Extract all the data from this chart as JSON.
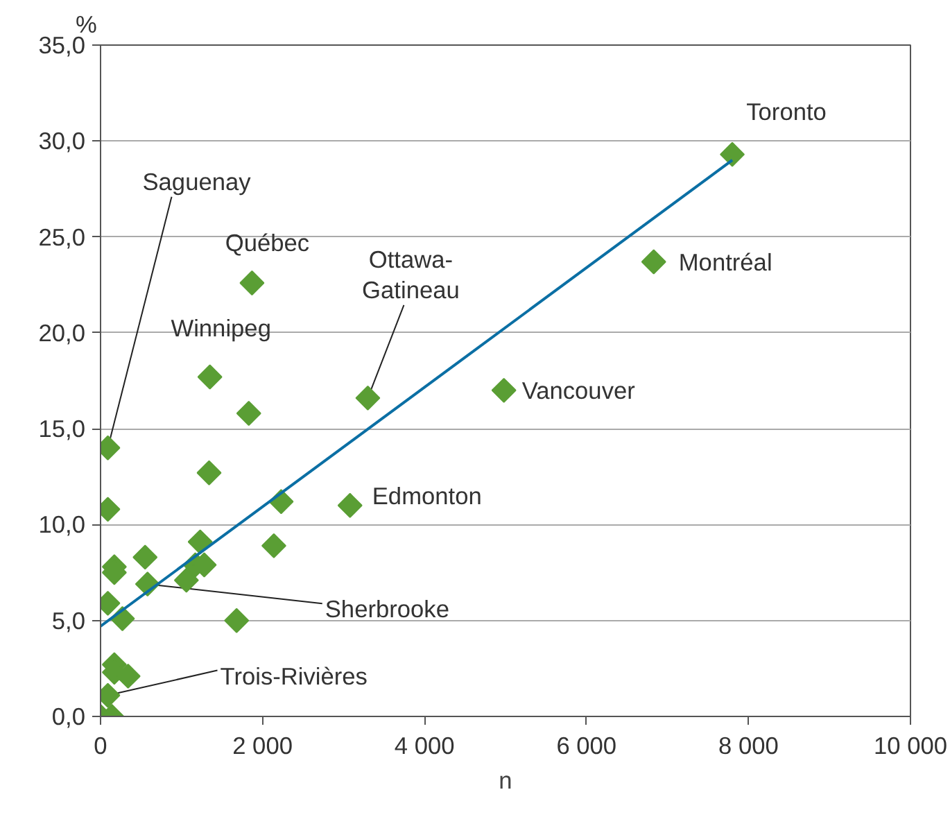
{
  "chart_data": {
    "type": "scatter",
    "ylabel": "%",
    "xlabel": "n",
    "xlim": [
      0,
      10000
    ],
    "ylim": [
      0,
      35
    ],
    "xticks": [
      {
        "value": 0,
        "label": "0"
      },
      {
        "value": 2000,
        "label": "2 000"
      },
      {
        "value": 4000,
        "label": "4 000"
      },
      {
        "value": 6000,
        "label": "6 000"
      },
      {
        "value": 8000,
        "label": "8 000"
      },
      {
        "value": 10000,
        "label": "10 000"
      }
    ],
    "yticks": [
      {
        "value": 0,
        "label": "0,0"
      },
      {
        "value": 5,
        "label": "5,0"
      },
      {
        "value": 10,
        "label": "10,0"
      },
      {
        "value": 15,
        "label": "15,0"
      },
      {
        "value": 20,
        "label": "20,0"
      },
      {
        "value": 25,
        "label": "25,0"
      },
      {
        "value": 30,
        "label": "30,0"
      },
      {
        "value": 35,
        "label": "35,0"
      }
    ],
    "grid": "y",
    "series": [
      {
        "marker": "diamond",
        "color": "#5a9e34",
        "x": [
          7800,
          6830,
          1870,
          1350,
          1830,
          3300,
          4980,
          1340,
          2230,
          3080,
          2140,
          90,
          90,
          1230,
          550,
          170,
          170,
          1170,
          1280,
          1060,
          580,
          90,
          270,
          1680,
          170,
          170,
          340,
          90,
          0,
          140
        ],
        "values": [
          29.3,
          23.7,
          22.6,
          17.7,
          15.8,
          16.6,
          17.0,
          12.7,
          11.2,
          11.0,
          8.9,
          14.0,
          10.8,
          9.1,
          8.3,
          7.8,
          7.5,
          7.9,
          7.9,
          7.1,
          6.9,
          5.9,
          5.1,
          5.0,
          2.7,
          2.3,
          2.1,
          1.1,
          0.0,
          0.0
        ]
      },
      {
        "type": "line",
        "color": "#0b6fa4",
        "x": [
          0,
          7800
        ],
        "values": [
          4.7,
          29.0
        ]
      }
    ],
    "annotations": [
      {
        "text": "Toronto",
        "x": 7800,
        "y": 29.3
      },
      {
        "text": "Montréal",
        "x": 6830,
        "y": 23.7
      },
      {
        "text": "Québec",
        "x": 1870,
        "y": 22.6
      },
      {
        "text": "Winnipeg",
        "x": 1350,
        "y": 17.7
      },
      {
        "text": "Ottawa-\nGatineau",
        "x": 3300,
        "y": 16.6
      },
      {
        "text": "Vancouver",
        "x": 4980,
        "y": 17.0
      },
      {
        "text": "Edmonton",
        "x": 3080,
        "y": 11.0
      },
      {
        "text": "Saguenay",
        "x": 90,
        "y": 14.0
      },
      {
        "text": "Sherbrooke",
        "x": 580,
        "y": 6.9
      },
      {
        "text": "Trois-Rivières",
        "x": 90,
        "y": 1.1
      }
    ]
  }
}
